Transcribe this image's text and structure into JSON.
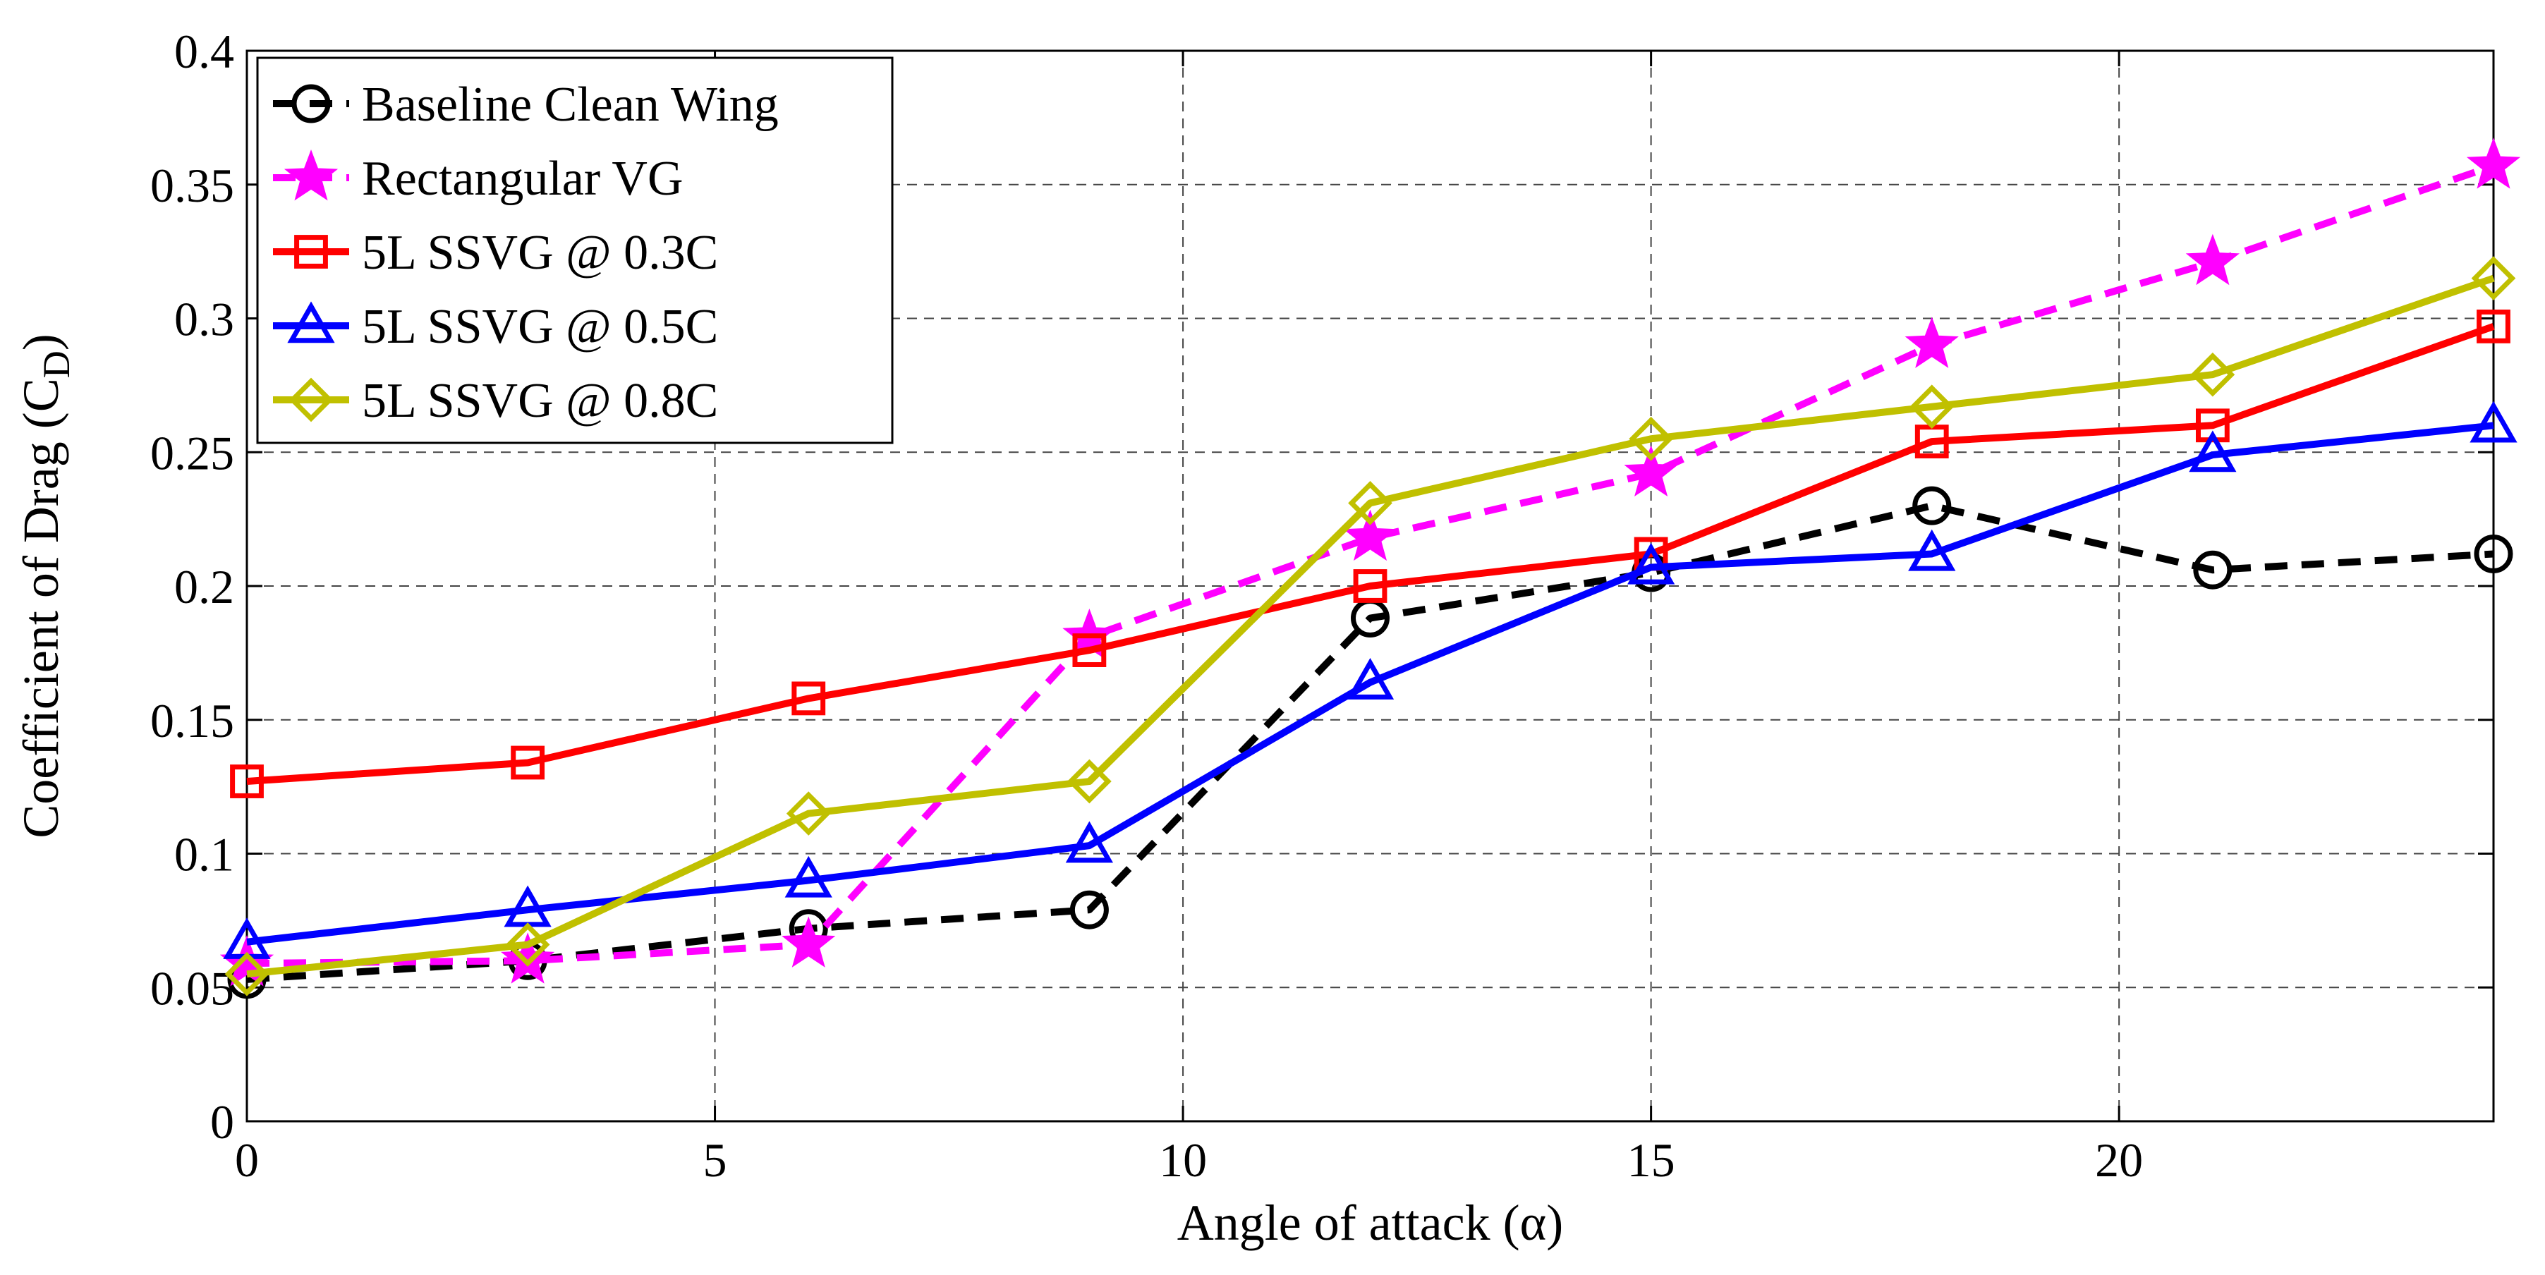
{
  "chart_data": {
    "type": "line",
    "title": "",
    "xlabel": "Angle of attack (α)",
    "ylabel_main": "Coefficient of Drag (C",
    "ylabel_sub": "D",
    "ylabel_close": ")",
    "xlim": [
      0,
      24
    ],
    "ylim": [
      0,
      0.4
    ],
    "xticks": [
      0,
      5,
      10,
      15,
      20
    ],
    "xtick_labels": [
      "0",
      "5",
      "10",
      "15",
      "20"
    ],
    "yticks": [
      0,
      0.05,
      0.1,
      0.15,
      0.2,
      0.25,
      0.3,
      0.35,
      0.4
    ],
    "ytick_labels": [
      "0",
      "0.05",
      "0.1",
      "0.15",
      "0.2",
      "0.25",
      "0.3",
      "0.35",
      "0.4"
    ],
    "grid": true,
    "legend_position": "top-left",
    "x": [
      0,
      3,
      6,
      9,
      12,
      15,
      18,
      21,
      24
    ],
    "series": [
      {
        "name": "Baseline Clean Wing",
        "color": "#000000",
        "line": "dashed",
        "marker": "circle",
        "values": [
          0.053,
          0.06,
          0.072,
          0.079,
          0.188,
          0.205,
          0.23,
          0.206,
          0.212
        ]
      },
      {
        "name": "Rectangular VG",
        "color": "#ff00ff",
        "line": "dashed",
        "marker": "star",
        "values": [
          0.059,
          0.06,
          0.066,
          0.181,
          0.218,
          0.242,
          0.29,
          0.321,
          0.357
        ]
      },
      {
        "name": "5L SSVG @ 0.3C",
        "color": "#ff0000",
        "line": "solid",
        "marker": "square",
        "values": [
          0.127,
          0.134,
          0.158,
          0.176,
          0.2,
          0.212,
          0.254,
          0.26,
          0.297
        ]
      },
      {
        "name": "5L SSVG @ 0.5C",
        "color": "#0000ff",
        "line": "solid",
        "marker": "triangle",
        "values": [
          0.067,
          0.079,
          0.09,
          0.103,
          0.164,
          0.207,
          0.212,
          0.249,
          0.26
        ]
      },
      {
        "name": "5L SSVG @ 0.8C",
        "color": "#c0c000",
        "line": "solid",
        "marker": "diamond",
        "values": [
          0.055,
          0.066,
          0.115,
          0.127,
          0.231,
          0.255,
          0.267,
          0.279,
          0.315
        ]
      }
    ]
  }
}
